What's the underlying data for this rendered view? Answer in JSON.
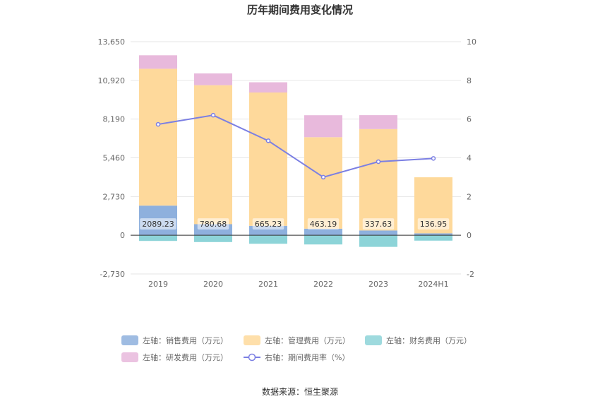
{
  "chart_data": {
    "type": "bar",
    "title": "历年期间费用变化情况",
    "categories": [
      "2019",
      "2020",
      "2021",
      "2022",
      "2023",
      "2024H1"
    ],
    "left_axis": {
      "ticks": [
        "13,650",
        "10,920",
        "8,190",
        "5,460",
        "2,730",
        "0",
        "-2,730"
      ],
      "range": [
        -2730,
        13650
      ]
    },
    "right_axis": {
      "ticks": [
        "10",
        "8",
        "6",
        "4",
        "2",
        "0",
        "-2"
      ],
      "range": [
        -2,
        10
      ]
    },
    "series": [
      {
        "name": "左轴：销售费用（万元）",
        "axis": "left",
        "kind": "bar",
        "color": "#8eb0dd",
        "values": [
          2089.23,
          780.68,
          665.23,
          463.19,
          337.63,
          136.95
        ],
        "labels": [
          "2089.23",
          "780.68",
          "665.23",
          "463.19",
          "337.63",
          "136.95"
        ]
      },
      {
        "name": "左轴：管理费用（万元）",
        "axis": "left",
        "kind": "bar",
        "color": "#fed99b",
        "values": [
          9650,
          9800,
          9400,
          6450,
          7150,
          3950
        ]
      },
      {
        "name": "左轴：财务费用（万元）",
        "axis": "left",
        "kind": "bar",
        "color": "#8dd4d8",
        "values": [
          -400,
          -480,
          -600,
          -650,
          -820,
          -380
        ]
      },
      {
        "name": "左轴：研发费用（万元）",
        "axis": "left",
        "kind": "bar",
        "color": "#e8b9dc",
        "values": [
          950,
          830,
          720,
          1550,
          980,
          0
        ]
      },
      {
        "name": "右轴：期间费用率（%）",
        "axis": "right",
        "kind": "line",
        "color": "#7b7fe3",
        "values": [
          5.73,
          6.2,
          4.88,
          3.0,
          3.8,
          3.97
        ]
      }
    ],
    "source": "数据来源：恒生聚源"
  }
}
